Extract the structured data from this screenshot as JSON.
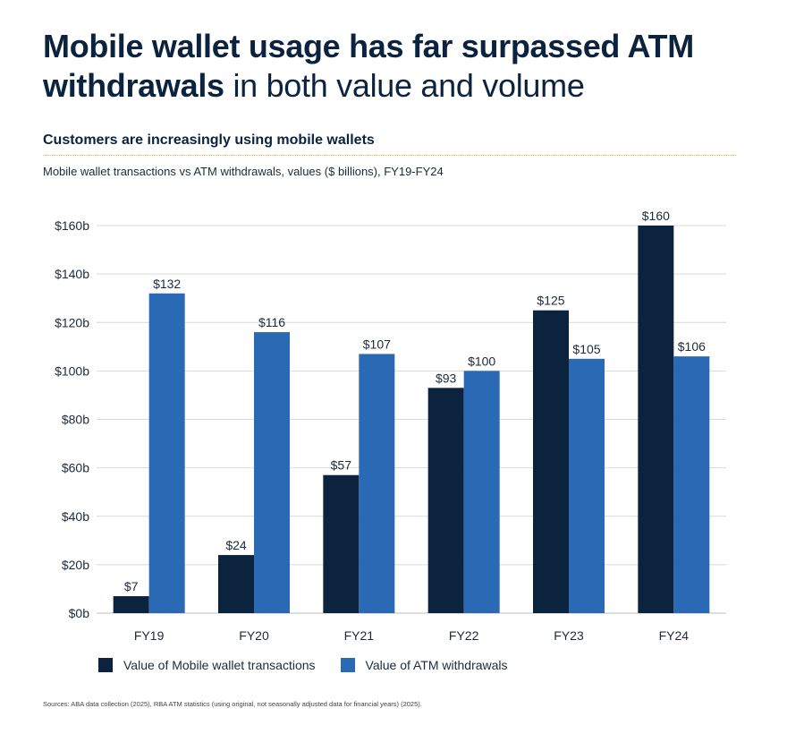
{
  "header": {
    "title_bold": "Mobile wallet usage has far surpassed ATM withdrawals",
    "title_rest": " in both value and volume",
    "subtitle": "Customers are increasingly using mobile wallets",
    "caption": "Mobile wallet transactions vs ATM withdrawals, values ($ billions), FY19-FY24"
  },
  "footer": {
    "sources": "Sources: ABA data collection (2025), RBA ATM statistics (using original, not seasonally adjusted data for financial years) (2025)."
  },
  "colors": {
    "mobile": "#0c2340",
    "atm": "#2a6ab5",
    "grid": "#d9d9d9",
    "rule": "#e3b23c"
  },
  "chart_data": {
    "type": "bar",
    "categories": [
      "FY19",
      "FY20",
      "FY21",
      "FY22",
      "FY23",
      "FY24"
    ],
    "series": [
      {
        "name": "Value of Mobile wallet transactions",
        "values": [
          7,
          24,
          57,
          93,
          125,
          160
        ],
        "labels": [
          "$7",
          "$24",
          "$57",
          "$93",
          "$125",
          "$160"
        ]
      },
      {
        "name": "Value of ATM withdrawals",
        "values": [
          132,
          116,
          107,
          100,
          105,
          106
        ],
        "labels": [
          "$132",
          "$116",
          "$107",
          "$100",
          "$105",
          "$106"
        ]
      }
    ],
    "ylim": [
      0,
      160
    ],
    "yticks": [
      0,
      20,
      40,
      60,
      80,
      100,
      120,
      140,
      160
    ],
    "ytick_labels": [
      "$0b",
      "$20b",
      "$40b",
      "$60b",
      "$80b",
      "$100b",
      "$120b",
      "$140b",
      "$160b"
    ],
    "grid": true,
    "legend_position": "bottom-left"
  }
}
